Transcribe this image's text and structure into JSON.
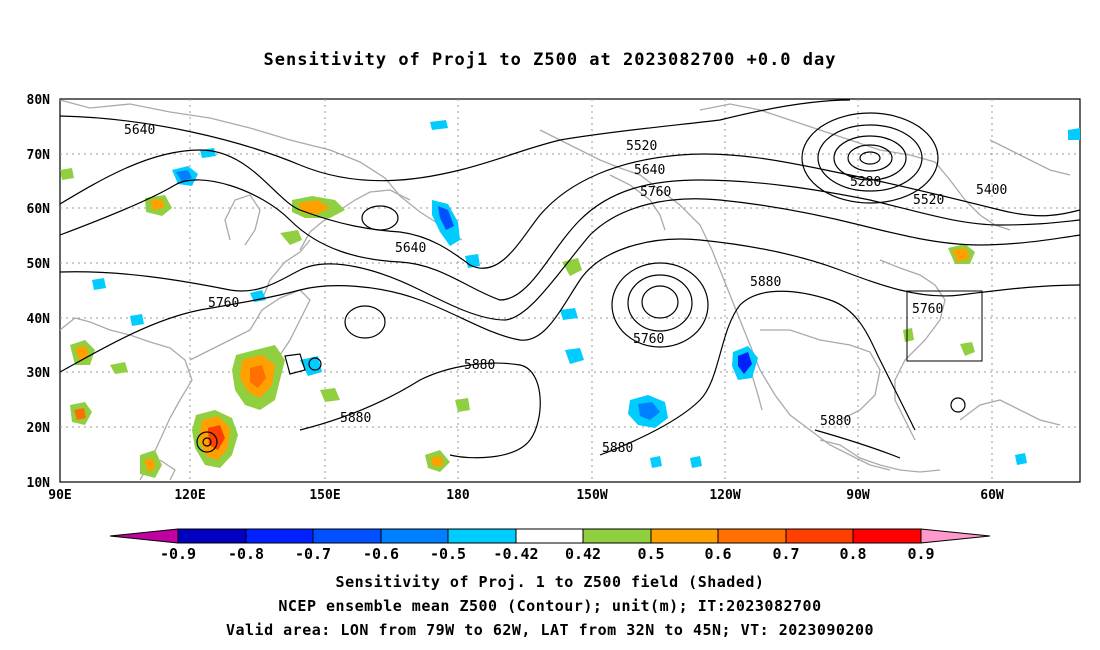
{
  "title": "Sensitivity of Proj1 to Z500 at 2023082700 +0.0 day",
  "lat_labels": [
    "80N",
    "70N",
    "60N",
    "50N",
    "40N",
    "30N",
    "20N",
    "10N"
  ],
  "lon_labels": [
    "90E",
    "120E",
    "150E",
    "180",
    "150W",
    "120W",
    "90W",
    "60W"
  ],
  "contour_labels": [
    "5640",
    "5520",
    "5640",
    "5760",
    "5280",
    "5400",
    "5520",
    "5640",
    "5760",
    "5880",
    "5760",
    "5880",
    "5880",
    "5760",
    "5880",
    "5880"
  ],
  "colorbar": {
    "labels": [
      "-0.9",
      "-0.8",
      "-0.7",
      "-0.6",
      "-0.5",
      "-0.42",
      "0.42",
      "0.5",
      "0.6",
      "0.7",
      "0.8",
      "0.9"
    ],
    "colors": [
      "#c000a0",
      "#0000c0",
      "#0020ff",
      "#0050ff",
      "#0080ff",
      "#00b0ff",
      "#00ccff",
      "#ffffff",
      "#90d040",
      "#ffa000",
      "#ff7000",
      "#ff4000",
      "#ff0000",
      "#ff99cc"
    ]
  },
  "captions": [
    "Sensitivity of Proj. 1 to Z500 field (Shaded)",
    "NCEP ensemble mean Z500 (Contour); unit(m); IT:2023082700",
    "Valid area: LON from 79W to 62W, LAT from 32N to 45N; VT: 2023090200"
  ],
  "valid_area": {
    "lon_min": -79,
    "lon_max": -62,
    "lat_min": 32,
    "lat_max": 45
  },
  "map_extent": {
    "lon_min": 90,
    "lon_max": 325,
    "lat_min": 10,
    "lat_max": 80
  }
}
